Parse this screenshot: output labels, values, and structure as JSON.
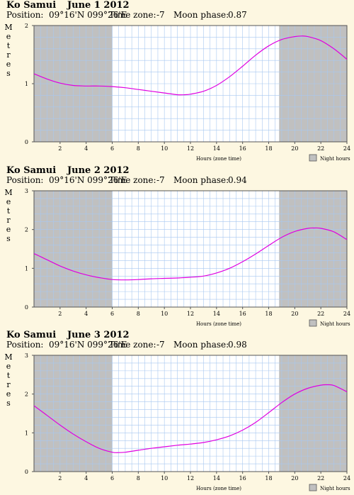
{
  "chart_data": [
    {
      "type": "line",
      "location": "Ko Samui",
      "date": "June 1 2012",
      "position_label": "Position:",
      "position": "09°16'N 099°26'E",
      "timezone_label": "Time zone:",
      "timezone": "-7",
      "moon_label": "Moon phase:",
      "moon_phase": "0.87",
      "ylabel": "Metres",
      "xlabel": "Hours (zone time)",
      "ylim": [
        0,
        2
      ],
      "yticks": [
        "0",
        "1",
        "2"
      ],
      "xlim": [
        0,
        24
      ],
      "xticks": [
        "2",
        "4",
        "6",
        "8",
        "10",
        "12",
        "14",
        "16",
        "18",
        "20",
        "22",
        "24"
      ],
      "grid": true,
      "night_hours": [
        [
          0,
          6
        ],
        [
          18.8,
          24
        ]
      ],
      "legend": "Night hours",
      "series": [
        {
          "color": "#e000e0",
          "x": [
            0,
            1,
            2,
            3,
            4,
            5,
            6,
            7,
            8,
            9,
            10,
            11,
            11.5,
            12,
            13,
            14,
            15,
            16,
            17,
            18,
            19,
            20,
            20.5,
            21,
            22,
            23,
            24
          ],
          "y": [
            1.17,
            1.08,
            1.01,
            0.97,
            0.96,
            0.96,
            0.95,
            0.93,
            0.9,
            0.87,
            0.84,
            0.81,
            0.81,
            0.82,
            0.87,
            0.97,
            1.12,
            1.3,
            1.49,
            1.65,
            1.76,
            1.81,
            1.82,
            1.81,
            1.74,
            1.6,
            1.42
          ]
        }
      ]
    },
    {
      "type": "line",
      "location": "Ko Samui",
      "date": "June 2 2012",
      "position_label": "Position:",
      "position": "09°16'N 099°26'E",
      "timezone_label": "Time zone:",
      "timezone": "-7",
      "moon_label": "Moon phase:",
      "moon_phase": "0.94",
      "ylabel": "Metres",
      "xlabel": "Hours (zone time)",
      "ylim": [
        0,
        3
      ],
      "yticks": [
        "0",
        "1",
        "2",
        "3"
      ],
      "xlim": [
        0,
        24
      ],
      "xticks": [
        "2",
        "4",
        "6",
        "8",
        "10",
        "12",
        "14",
        "16",
        "18",
        "20",
        "22",
        "24"
      ],
      "grid": true,
      "night_hours": [
        [
          0,
          6
        ],
        [
          18.8,
          24
        ]
      ],
      "legend": "Night hours",
      "series": [
        {
          "color": "#e000e0",
          "x": [
            0,
            1,
            2,
            3,
            4,
            5,
            6,
            7,
            8,
            9,
            10,
            11,
            12,
            13,
            14,
            15,
            16,
            17,
            18,
            19,
            20,
            21,
            21.5,
            22,
            23,
            24
          ],
          "y": [
            1.38,
            1.22,
            1.06,
            0.93,
            0.83,
            0.76,
            0.71,
            0.7,
            0.71,
            0.73,
            0.74,
            0.75,
            0.77,
            0.8,
            0.88,
            1.0,
            1.17,
            1.37,
            1.59,
            1.8,
            1.95,
            2.03,
            2.04,
            2.03,
            1.94,
            1.74
          ]
        }
      ]
    },
    {
      "type": "line",
      "location": "Ko Samui",
      "date": "June 3 2012",
      "position_label": "Position:",
      "position": "09°16'N 099°26'E",
      "timezone_label": "Time zone:",
      "timezone": "-7",
      "moon_label": "Moon phase:",
      "moon_phase": "0.98",
      "ylabel": "Metres",
      "xlabel": "Hours (zone time)",
      "ylim": [
        0,
        3
      ],
      "yticks": [
        "0",
        "1",
        "2",
        "3"
      ],
      "xlim": [
        0,
        24
      ],
      "xticks": [
        "2",
        "4",
        "6",
        "8",
        "10",
        "12",
        "14",
        "16",
        "18",
        "20",
        "22",
        "24"
      ],
      "grid": true,
      "night_hours": [
        [
          0,
          6
        ],
        [
          18.8,
          24
        ]
      ],
      "legend": "Night hours",
      "series": [
        {
          "color": "#e000e0",
          "x": [
            0,
            1,
            2,
            3,
            4,
            5,
            6,
            6.5,
            7,
            8,
            9,
            10,
            11,
            12,
            13,
            14,
            15,
            16,
            17,
            18,
            19,
            20,
            21,
            22,
            22.5,
            23,
            24
          ],
          "y": [
            1.7,
            1.45,
            1.2,
            0.97,
            0.77,
            0.6,
            0.5,
            0.49,
            0.5,
            0.55,
            0.6,
            0.64,
            0.68,
            0.71,
            0.75,
            0.82,
            0.92,
            1.07,
            1.27,
            1.52,
            1.78,
            2.0,
            2.15,
            2.23,
            2.24,
            2.22,
            2.06
          ]
        }
      ]
    }
  ]
}
